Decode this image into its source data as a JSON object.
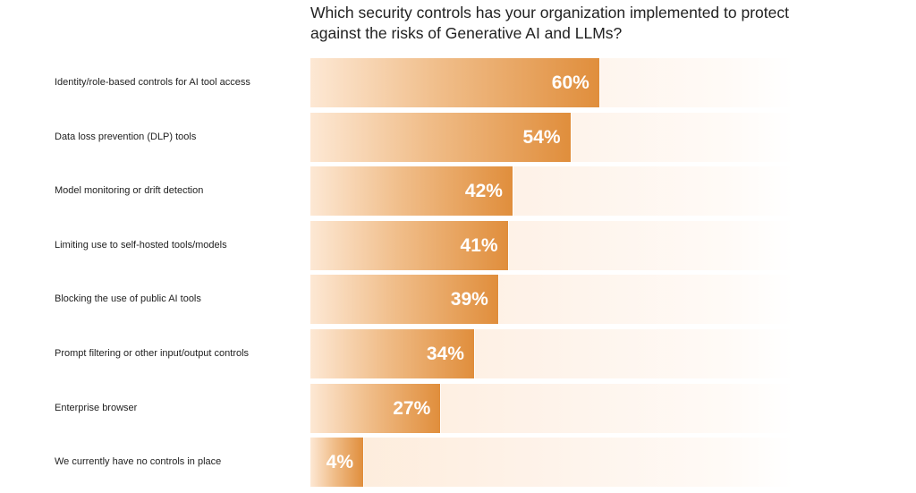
{
  "chart_data": {
    "type": "bar",
    "orientation": "horizontal",
    "title": "Which security controls has your organization implemented to protect against the risks of Generative AI and LLMs?",
    "categories": [
      "Identity/role-based controls for AI tool access",
      "Data loss prevention (DLP) tools",
      "Model monitoring or drift detection",
      "Limiting use to self-hosted tools/models",
      "Blocking the use of public AI tools",
      "Prompt filtering or other input/output controls",
      "Enterprise browser",
      "We currently have no controls in place"
    ],
    "values": [
      60,
      54,
      42,
      41,
      39,
      34,
      27,
      4
    ],
    "value_labels": [
      "60%",
      "54%",
      "42%",
      "41%",
      "39%",
      "34%",
      "27%",
      "4%"
    ],
    "xlim": [
      0,
      100
    ],
    "grid": false,
    "colors": {
      "bar_start": "#fde8d4",
      "bar_end": "#e08e3c",
      "track": "#fdebd9"
    }
  }
}
